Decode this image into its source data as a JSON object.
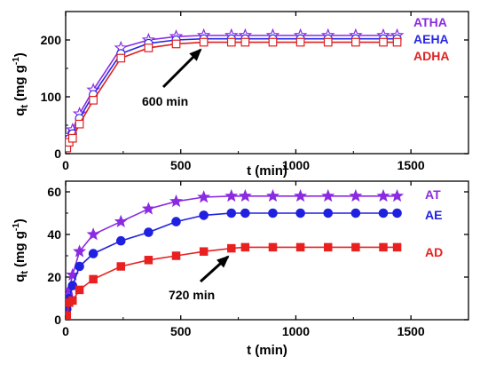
{
  "chart_data": [
    {
      "type": "line",
      "title": "",
      "xlabel": "t (min)",
      "ylabel": "q_t (mg g^-1)",
      "ylabel_main": "q",
      "ylabel_sub": "t",
      "ylabel_units": "(mg g",
      "ylabel_sup": "-1",
      "ylabel_close": ")",
      "xlim": [
        0,
        1750
      ],
      "ylim": [
        0,
        250
      ],
      "xticks": [
        0,
        500,
        1000,
        1500
      ],
      "yticks": [
        0,
        100,
        200
      ],
      "xtick_labels": [
        "0",
        "500",
        "1000",
        "1500"
      ],
      "ytick_labels": [
        "0",
        "100",
        "200"
      ],
      "grid": false,
      "legend_placement": "top-right",
      "marker_fill": "open",
      "annotation": {
        "text": "600 min",
        "arrow_to": [
          600,
          196
        ]
      },
      "series": [
        {
          "name": "ATHA",
          "color": "#8a2be2",
          "marker": "star",
          "x": [
            5,
            15,
            30,
            60,
            120,
            240,
            360,
            480,
            600,
            720,
            780,
            900,
            1020,
            1140,
            1260,
            1380,
            1440
          ],
          "y": [
            20,
            32,
            42,
            70,
            112,
            186,
            200,
            206,
            208,
            208,
            208,
            208,
            208,
            208,
            208,
            208,
            208
          ]
        },
        {
          "name": "AEHA",
          "color": "#2828e6",
          "marker": "circle",
          "x": [
            5,
            15,
            30,
            60,
            120,
            240,
            360,
            480,
            600,
            720,
            780,
            900,
            1020,
            1140,
            1260,
            1380,
            1440
          ],
          "y": [
            15,
            26,
            35,
            62,
            104,
            176,
            194,
            200,
            202,
            202,
            202,
            202,
            202,
            202,
            202,
            202,
            202
          ]
        },
        {
          "name": "ADHA",
          "color": "#e02020",
          "marker": "square",
          "x": [
            5,
            15,
            30,
            60,
            120,
            240,
            360,
            480,
            600,
            720,
            780,
            900,
            1020,
            1140,
            1260,
            1380,
            1440
          ],
          "y": [
            10,
            20,
            27,
            52,
            94,
            168,
            186,
            193,
            196,
            196,
            196,
            196,
            196,
            196,
            196,
            196,
            196
          ]
        }
      ]
    },
    {
      "type": "line",
      "title": "",
      "xlabel": "t (min)",
      "ylabel": "q_t (mg g^-1)",
      "ylabel_main": "q",
      "ylabel_sub": "t",
      "ylabel_units": "(mg g",
      "ylabel_sup": "-1",
      "ylabel_close": ")",
      "xlim": [
        0,
        1750
      ],
      "ylim": [
        0,
        65
      ],
      "xticks": [
        0,
        500,
        1000,
        1500
      ],
      "yticks": [
        0,
        20,
        40,
        60
      ],
      "xtick_labels": [
        "0",
        "500",
        "1000",
        "1500"
      ],
      "ytick_labels": [
        "0",
        "20",
        "40",
        "60"
      ],
      "grid": false,
      "legend_placement": "right",
      "marker_fill": "solid",
      "annotation": {
        "text": "720 min",
        "arrow_to": [
          720,
          34
        ]
      },
      "series": [
        {
          "name": "AT",
          "color": "#8a2be2",
          "marker": "star",
          "x": [
            5,
            15,
            30,
            60,
            120,
            240,
            360,
            480,
            600,
            720,
            780,
            900,
            1020,
            1140,
            1260,
            1380,
            1440
          ],
          "y": [
            6,
            14,
            21,
            32,
            40,
            46,
            52,
            55.5,
            57.5,
            58,
            58,
            58,
            58,
            58,
            58,
            58,
            58
          ]
        },
        {
          "name": "AE",
          "color": "#2020e0",
          "marker": "circle",
          "x": [
            5,
            15,
            30,
            60,
            120,
            240,
            360,
            480,
            600,
            720,
            780,
            900,
            1020,
            1140,
            1260,
            1380,
            1440
          ],
          "y": [
            5,
            10,
            16,
            25,
            31,
            37,
            41,
            46,
            49,
            50,
            50,
            50,
            50,
            50,
            50,
            50,
            50
          ]
        },
        {
          "name": "AD",
          "color": "#e82020",
          "marker": "square",
          "x": [
            5,
            15,
            30,
            60,
            120,
            240,
            360,
            480,
            600,
            720,
            780,
            900,
            1020,
            1140,
            1260,
            1380,
            1440
          ],
          "y": [
            2,
            8,
            9,
            14,
            19,
            25,
            28,
            30,
            32,
            33.5,
            34,
            34,
            34,
            34,
            34,
            34,
            34
          ]
        }
      ]
    }
  ]
}
